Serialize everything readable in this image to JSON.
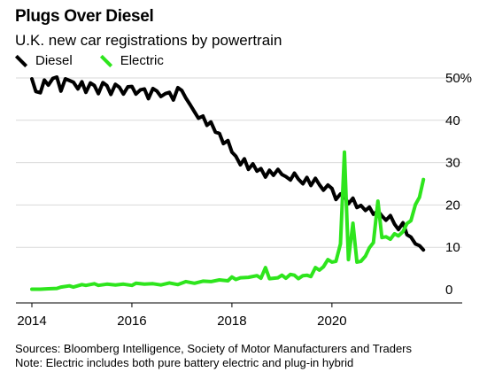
{
  "header": {
    "title": "Plugs Over Diesel",
    "subtitle": "U.K. new car registrations by powertrain"
  },
  "footer": {
    "sources": "Sources: Bloomberg Intelligence, Society of Motor Manufacturers and Traders",
    "note": "Note: Electric includes both pure battery electric and plug-in hybrid"
  },
  "chart_data": {
    "type": "line",
    "title": "Plugs Over Diesel",
    "subtitle": "U.K. new car registrations by powertrain",
    "xlabel": "",
    "ylabel": "",
    "xlim": [
      2014.0,
      2021.95
    ],
    "ylim": [
      0,
      50
    ],
    "x_ticks": [
      2014,
      2016,
      2018,
      2020
    ],
    "x_tick_labels": [
      "2014",
      "2016",
      "2018",
      "2020"
    ],
    "y_ticks": [
      0,
      10,
      20,
      30,
      40,
      50
    ],
    "y_tick_labels": [
      "0",
      "10",
      "20",
      "30",
      "40",
      "50%"
    ],
    "y_axis_position": "right",
    "grid": "horizontal",
    "legend_position": "top-left",
    "series": [
      {
        "name": "Diesel",
        "color": "#000000",
        "points": [
          [
            2014.0,
            49.8
          ],
          [
            2014.08,
            46.8
          ],
          [
            2014.17,
            46.5
          ],
          [
            2014.25,
            49.5
          ],
          [
            2014.33,
            48.3
          ],
          [
            2014.42,
            49.9
          ],
          [
            2014.5,
            50.2
          ],
          [
            2014.58,
            46.9
          ],
          [
            2014.67,
            49.8
          ],
          [
            2014.75,
            49.4
          ],
          [
            2014.83,
            49.0
          ],
          [
            2014.92,
            47.4
          ],
          [
            2015.0,
            49.1
          ],
          [
            2015.08,
            46.6
          ],
          [
            2015.17,
            48.8
          ],
          [
            2015.25,
            48.2
          ],
          [
            2015.33,
            46.3
          ],
          [
            2015.42,
            48.9
          ],
          [
            2015.5,
            48.2
          ],
          [
            2015.58,
            46.1
          ],
          [
            2015.67,
            48.5
          ],
          [
            2015.75,
            47.8
          ],
          [
            2015.83,
            46.2
          ],
          [
            2015.92,
            47.9
          ],
          [
            2016.0,
            48.0
          ],
          [
            2016.08,
            46.2
          ],
          [
            2016.17,
            47.2
          ],
          [
            2016.25,
            47.4
          ],
          [
            2016.33,
            45.1
          ],
          [
            2016.42,
            47.5
          ],
          [
            2016.5,
            46.9
          ],
          [
            2016.58,
            45.6
          ],
          [
            2016.67,
            46.3
          ],
          [
            2016.75,
            46.6
          ],
          [
            2016.83,
            44.8
          ],
          [
            2016.92,
            47.7
          ],
          [
            2017.0,
            47.0
          ],
          [
            2017.08,
            45.2
          ],
          [
            2017.17,
            43.6
          ],
          [
            2017.25,
            42.0
          ],
          [
            2017.33,
            40.5
          ],
          [
            2017.42,
            41.0
          ],
          [
            2017.5,
            38.8
          ],
          [
            2017.58,
            39.6
          ],
          [
            2017.67,
            37.2
          ],
          [
            2017.75,
            36.9
          ],
          [
            2017.83,
            34.5
          ],
          [
            2017.92,
            35.2
          ],
          [
            2018.0,
            32.5
          ],
          [
            2018.08,
            31.5
          ],
          [
            2018.17,
            29.5
          ],
          [
            2018.25,
            30.9
          ],
          [
            2018.33,
            28.4
          ],
          [
            2018.42,
            29.7
          ],
          [
            2018.5,
            28.0
          ],
          [
            2018.58,
            28.6
          ],
          [
            2018.67,
            26.6
          ],
          [
            2018.75,
            28.2
          ],
          [
            2018.83,
            27.0
          ],
          [
            2018.92,
            28.4
          ],
          [
            2019.0,
            27.2
          ],
          [
            2019.08,
            26.7
          ],
          [
            2019.17,
            25.9
          ],
          [
            2019.25,
            27.5
          ],
          [
            2019.33,
            26.1
          ],
          [
            2019.42,
            25.0
          ],
          [
            2019.5,
            26.5
          ],
          [
            2019.58,
            24.6
          ],
          [
            2019.67,
            26.3
          ],
          [
            2019.75,
            24.8
          ],
          [
            2019.83,
            23.5
          ],
          [
            2019.92,
            24.7
          ],
          [
            2020.0,
            23.9
          ],
          [
            2020.08,
            21.3
          ],
          [
            2020.17,
            22.6
          ],
          [
            2020.25,
            22.0
          ],
          [
            2020.33,
            20.3
          ],
          [
            2020.42,
            21.6
          ],
          [
            2020.5,
            19.4
          ],
          [
            2020.58,
            19.9
          ],
          [
            2020.67,
            18.7
          ],
          [
            2020.75,
            19.5
          ],
          [
            2020.83,
            17.8
          ],
          [
            2020.92,
            18.6
          ],
          [
            2021.0,
            17.4
          ],
          [
            2021.08,
            16.4
          ],
          [
            2021.17,
            17.5
          ],
          [
            2021.25,
            15.5
          ],
          [
            2021.33,
            14.2
          ],
          [
            2021.42,
            15.8
          ],
          [
            2021.5,
            13.0
          ],
          [
            2021.58,
            12.4
          ],
          [
            2021.67,
            10.8
          ],
          [
            2021.75,
            10.4
          ],
          [
            2021.83,
            9.4
          ]
        ]
      },
      {
        "name": "Electric",
        "color": "#2ee51d",
        "points": [
          [
            2014.0,
            0.1
          ],
          [
            2014.17,
            0.1
          ],
          [
            2014.33,
            0.2
          ],
          [
            2014.5,
            0.3
          ],
          [
            2014.58,
            0.6
          ],
          [
            2014.75,
            0.9
          ],
          [
            2014.83,
            0.6
          ],
          [
            2015.0,
            1.2
          ],
          [
            2015.08,
            1.0
          ],
          [
            2015.25,
            1.4
          ],
          [
            2015.33,
            1.0
          ],
          [
            2015.5,
            1.3
          ],
          [
            2015.67,
            1.1
          ],
          [
            2015.83,
            1.3
          ],
          [
            2016.0,
            1.0
          ],
          [
            2016.08,
            1.5
          ],
          [
            2016.25,
            1.3
          ],
          [
            2016.42,
            1.4
          ],
          [
            2016.58,
            1.1
          ],
          [
            2016.75,
            1.6
          ],
          [
            2016.92,
            1.2
          ],
          [
            2017.08,
            1.9
          ],
          [
            2017.25,
            1.5
          ],
          [
            2017.42,
            2.0
          ],
          [
            2017.58,
            1.9
          ],
          [
            2017.75,
            2.3
          ],
          [
            2017.92,
            2.1
          ],
          [
            2018.0,
            3.0
          ],
          [
            2018.08,
            2.4
          ],
          [
            2018.17,
            2.8
          ],
          [
            2018.33,
            2.9
          ],
          [
            2018.5,
            3.3
          ],
          [
            2018.58,
            2.7
          ],
          [
            2018.67,
            5.2
          ],
          [
            2018.75,
            2.6
          ],
          [
            2018.92,
            2.8
          ],
          [
            2019.0,
            3.4
          ],
          [
            2019.08,
            2.7
          ],
          [
            2019.17,
            3.6
          ],
          [
            2019.25,
            3.4
          ],
          [
            2019.33,
            2.6
          ],
          [
            2019.42,
            3.3
          ],
          [
            2019.5,
            3.4
          ],
          [
            2019.58,
            3.1
          ],
          [
            2019.67,
            5.2
          ],
          [
            2019.75,
            4.6
          ],
          [
            2019.83,
            5.4
          ],
          [
            2019.92,
            7.1
          ],
          [
            2020.0,
            6.5
          ],
          [
            2020.08,
            6.7
          ],
          [
            2020.17,
            10.8
          ],
          [
            2020.25,
            32.5
          ],
          [
            2020.33,
            7.1
          ],
          [
            2020.42,
            15.7
          ],
          [
            2020.5,
            6.5
          ],
          [
            2020.58,
            6.7
          ],
          [
            2020.67,
            7.9
          ],
          [
            2020.75,
            9.9
          ],
          [
            2020.83,
            11.1
          ],
          [
            2020.92,
            20.9
          ],
          [
            2021.0,
            12.3
          ],
          [
            2021.08,
            12.5
          ],
          [
            2021.17,
            11.9
          ],
          [
            2021.25,
            13.2
          ],
          [
            2021.33,
            12.7
          ],
          [
            2021.42,
            13.7
          ],
          [
            2021.5,
            15.6
          ],
          [
            2021.58,
            16.3
          ],
          [
            2021.67,
            20.1
          ],
          [
            2021.75,
            21.8
          ],
          [
            2021.83,
            26.0
          ]
        ]
      }
    ]
  }
}
